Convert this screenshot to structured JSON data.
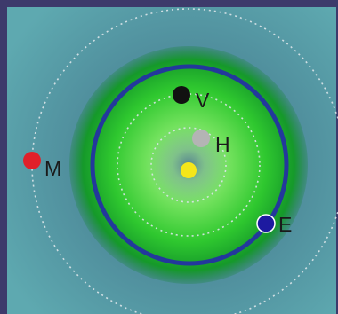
{
  "diagram": {
    "colors": {
      "frame": "#3d3a6b",
      "field_center": "#3f6f86",
      "field_edge": "#5ea9b0",
      "zone_inner": "#bff5a8",
      "zone_green": "#2fc82f",
      "zone_dark": "#15992a",
      "highlight_orbit": "#23389c",
      "dotted_orbit": "#dde6ea",
      "label": "#1a1a1a"
    },
    "star": {
      "color": "#f5e61a"
    },
    "bodies": [
      {
        "id": "H",
        "label": "H",
        "color": "#b4b4b4"
      },
      {
        "id": "V",
        "label": "V",
        "color": "#111111"
      },
      {
        "id": "E",
        "label": "E",
        "color": "#1d1aa0"
      },
      {
        "id": "M",
        "label": "M",
        "color": "#e0202a"
      }
    ]
  }
}
